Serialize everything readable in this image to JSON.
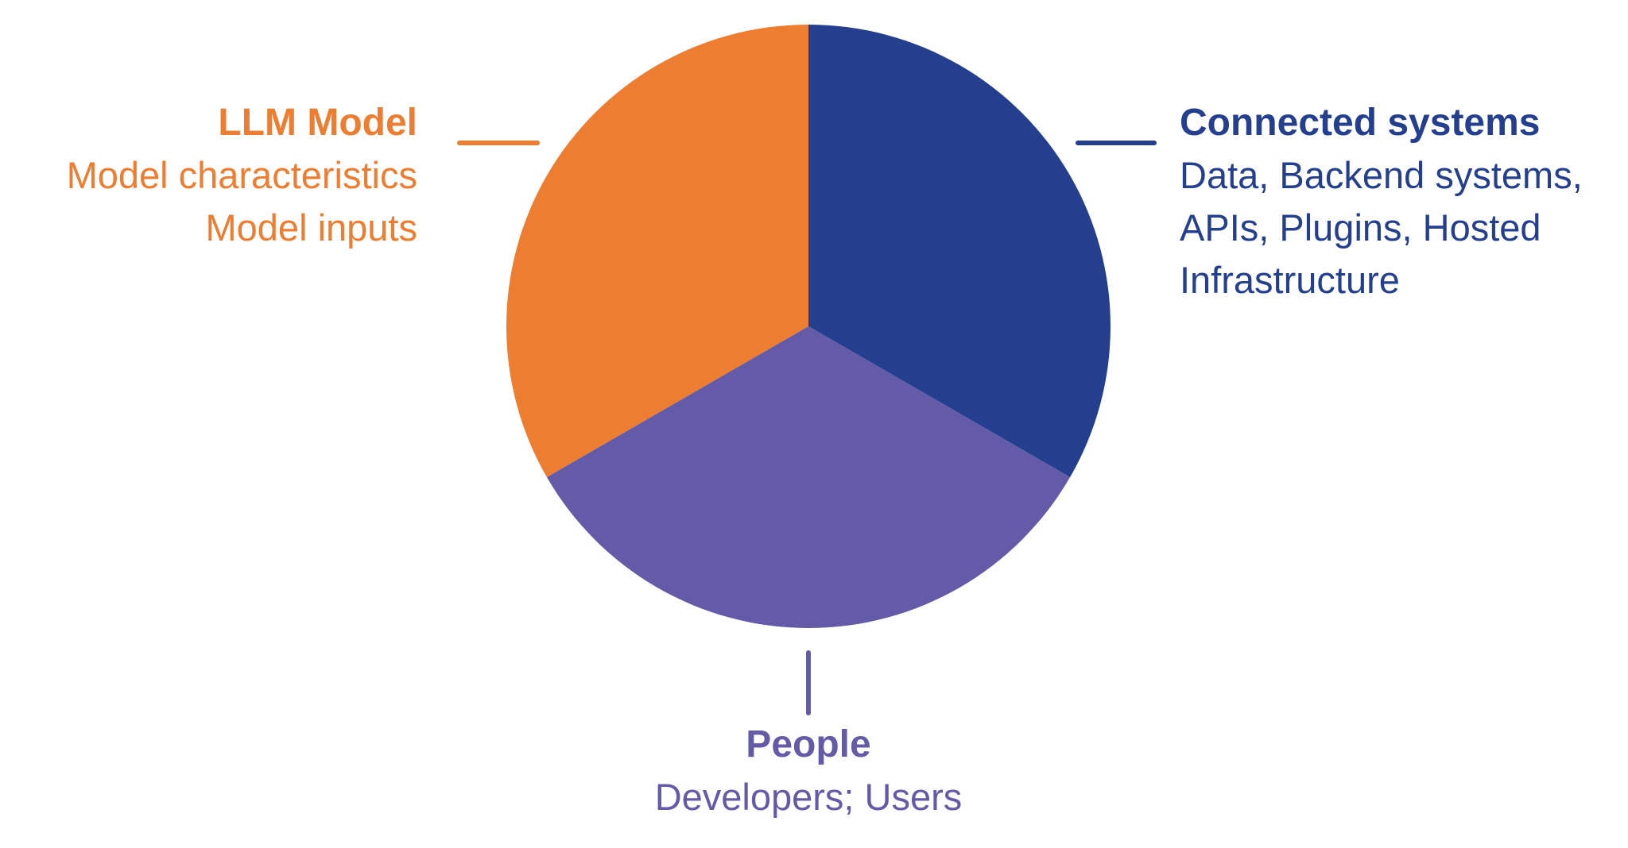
{
  "segments": [
    {
      "title": "LLM Model",
      "lines": [
        "Model characteristics",
        "Model inputs"
      ],
      "color": "#EC7D31"
    },
    {
      "title": "Connected systems",
      "lines": [
        "Data, Backend systems,",
        "APIs, Plugins, Hosted",
        "Infrastructure"
      ],
      "color": "#233F8E"
    },
    {
      "title": "People",
      "lines": [
        "Developers; Users"
      ],
      "color": "#635BA7"
    }
  ]
}
